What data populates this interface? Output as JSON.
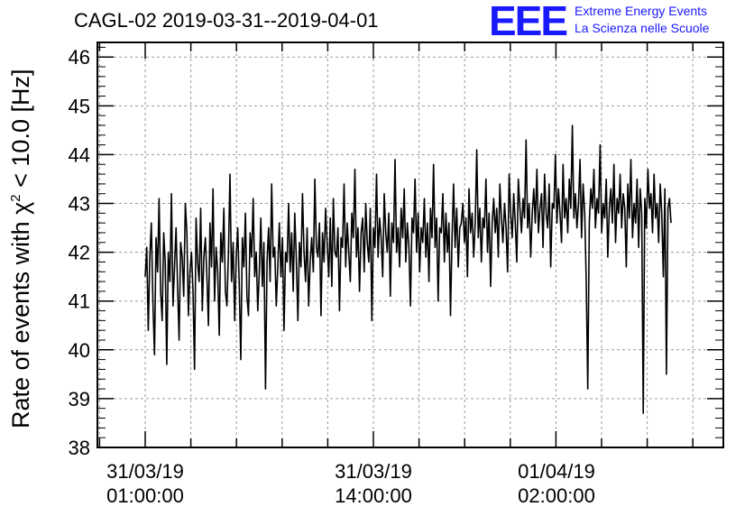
{
  "header": {
    "title": "CAGL-02 2019-03-31--2019-04-01",
    "logo": "EEE",
    "logo_line1": "Extreme Energy Events",
    "logo_line2": "La Scienza nelle Scuole"
  },
  "colors": {
    "logo": "#1a1aff",
    "line": "#000000",
    "grid": "#9a9a9a"
  },
  "chart_data": {
    "type": "line",
    "title": "CAGL-02 2019-03-31--2019-04-01",
    "ylabel_prefix": "Rate of events with χ",
    "ylabel_sup": "2",
    "ylabel_suffix": " < 10.0 [Hz]",
    "ylim": [
      38,
      46.3
    ],
    "yticks": [
      "38",
      "39",
      "40",
      "41",
      "42",
      "43",
      "44",
      "45",
      "46"
    ],
    "xticks": [
      {
        "date": "31/03/19",
        "time": "01:00:00"
      },
      {
        "date": "31/03/19",
        "time": "14:00:00"
      },
      {
        "date": "01/04/19",
        "time": "02:00:00"
      }
    ],
    "grid": true,
    "series": [
      {
        "values": [
          41.5,
          42.1,
          40.4,
          41.9,
          42.6,
          41.0,
          39.9,
          42.3,
          41.6,
          43.1,
          41.2,
          40.6,
          42.4,
          41.8,
          39.7,
          42.0,
          41.4,
          43.2,
          40.9,
          41.7,
          42.5,
          41.3,
          40.2,
          42.2,
          41.9,
          41.1,
          43.0,
          42.4,
          40.7,
          41.6,
          42.0,
          41.2,
          39.6,
          42.7,
          41.8,
          41.4,
          42.9,
          40.8,
          41.9,
          42.3,
          41.5,
          40.5,
          42.6,
          41.7,
          43.3,
          41.0,
          42.1,
          41.6,
          40.3,
          42.4,
          41.8,
          42.9,
          41.2,
          40.9,
          42.0,
          43.6,
          41.4,
          42.2,
          40.6,
          41.9,
          42.5,
          41.3,
          39.8,
          42.3,
          41.7,
          42.8,
          41.1,
          40.7,
          42.4,
          41.9,
          43.1,
          41.5,
          42.0,
          40.8,
          41.6,
          42.7,
          41.3,
          42.2,
          39.2,
          41.8,
          42.5,
          41.4,
          43.4,
          41.9,
          42.1,
          40.9,
          41.7,
          42.6,
          41.5,
          42.3,
          40.4,
          42.0,
          41.8,
          43.0,
          41.6,
          42.4,
          41.2,
          42.8,
          41.9,
          40.6,
          42.2,
          41.7,
          43.2,
          42.0,
          41.4,
          42.5,
          40.9,
          41.8,
          42.3,
          41.6,
          43.5,
          42.1,
          41.9,
          42.6,
          40.7,
          42.4,
          41.8,
          42.9,
          42.2,
          41.5,
          42.7,
          41.3,
          43.1,
          42.0,
          41.9,
          42.5,
          40.8,
          42.3,
          42.1,
          43.4,
          41.7,
          42.6,
          42.0,
          41.4,
          42.8,
          42.3,
          43.7,
          41.9,
          42.5,
          41.2,
          42.4,
          42.7,
          41.6,
          43.0,
          42.2,
          41.8,
          42.9,
          40.6,
          42.5,
          42.1,
          43.6,
          41.9,
          42.7,
          42.3,
          41.5,
          43.2,
          42.4,
          42.0,
          42.8,
          41.1,
          42.6,
          42.2,
          43.9,
          42.0,
          42.5,
          41.7,
          42.9,
          42.3,
          43.3,
          41.8,
          42.6,
          42.1,
          40.9,
          42.7,
          42.4,
          43.5,
          42.0,
          42.8,
          41.6,
          42.5,
          42.2,
          43.1,
          41.9,
          42.6,
          41.4,
          42.9,
          42.3,
          43.8,
          42.1,
          42.7,
          41.0,
          42.5,
          42.4,
          43.2,
          41.8,
          42.8,
          42.0,
          42.6,
          40.7,
          42.3,
          43.4,
          42.1,
          42.9,
          41.7,
          42.5,
          42.6,
          43.0,
          42.2,
          42.7,
          41.5,
          43.3,
          42.4,
          42.8,
          41.9,
          42.6,
          44.1,
          42.3,
          42.9,
          41.8,
          42.7,
          42.5,
          43.5,
          42.0,
          42.8,
          41.3,
          42.6,
          43.1,
          42.4,
          42.9,
          41.9,
          43.4,
          42.7,
          42.2,
          43.0,
          42.5,
          41.6,
          43.6,
          42.8,
          42.3,
          43.2,
          42.6,
          41.8,
          43.5,
          42.9,
          42.4,
          43.1,
          42.7,
          44.3,
          42.5,
          43.0,
          41.9,
          42.8,
          43.3,
          42.6,
          43.7,
          42.4,
          42.9,
          43.2,
          42.1,
          43.6,
          42.8,
          42.5,
          43.4,
          41.7,
          43.0,
          42.9,
          44.0,
          42.6,
          43.3,
          42.8,
          42.2,
          43.8,
          42.7,
          43.1,
          42.4,
          43.5,
          42.9,
          44.6,
          42.7,
          43.2,
          42.5,
          43.0,
          43.9,
          42.3,
          43.4,
          42.8,
          41.4,
          39.2,
          42.6,
          43.3,
          42.9,
          43.7,
          42.5,
          43.1,
          42.8,
          44.2,
          42.4,
          43.0,
          42.7,
          43.5,
          41.9,
          42.9,
          43.3,
          42.6,
          43.8,
          42.2,
          43.1,
          42.8,
          43.6,
          42.5,
          43.2,
          42.9,
          41.7,
          43.4,
          42.7,
          43.9,
          42.3,
          43.0,
          42.6,
          43.5,
          42.1,
          43.3,
          42.8,
          38.7,
          43.1,
          42.5,
          43.7,
          42.9,
          43.2,
          42.4,
          43.6,
          42.7,
          43.0,
          42.2,
          43.4,
          42.8,
          41.5,
          43.3,
          39.5,
          42.9,
          43.1,
          42.6
        ]
      }
    ]
  }
}
